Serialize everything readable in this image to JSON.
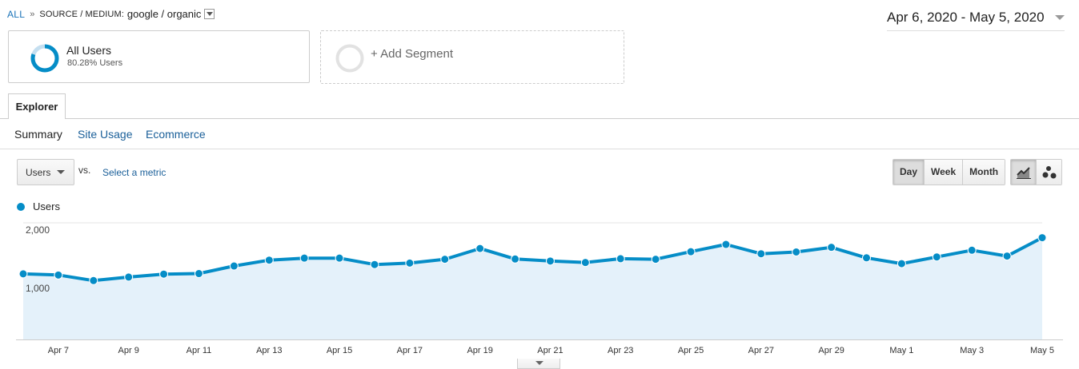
{
  "breadcrumb": {
    "all_label": "ALL",
    "separator": "»",
    "dimension_label": "SOURCE / MEDIUM:",
    "dimension_value": "google / organic"
  },
  "date_range": "Apr 6, 2020 - May 5, 2020",
  "segments": {
    "all_users": {
      "title": "All Users",
      "subtitle": "80.28% Users",
      "share": 0.8028
    },
    "add_segment_label": "+ Add Segment"
  },
  "tabs": {
    "explorer": "Explorer"
  },
  "subtabs": [
    "Summary",
    "Site Usage",
    "Ecommerce"
  ],
  "metric": {
    "selected": "Users",
    "vs_label": "vs.",
    "select_metric_label": "Select a metric"
  },
  "period_buttons": [
    "Day",
    "Week",
    "Month"
  ],
  "active_period": "Day",
  "view_icons": [
    "line-chart-icon",
    "motion-chart-icon"
  ],
  "colors": {
    "series": "#058dc7",
    "area": "#e4f1fa",
    "link": "#1a5f99"
  },
  "chart_data": {
    "type": "area",
    "legend": [
      "Users"
    ],
    "y_ticks": [
      "2,000",
      "1,000"
    ],
    "ylim": [
      0,
      2000
    ],
    "x_labels": [
      "Apr 7",
      "Apr 9",
      "Apr 11",
      "Apr 13",
      "Apr 15",
      "Apr 17",
      "Apr 19",
      "Apr 21",
      "Apr 23",
      "Apr 25",
      "Apr 27",
      "Apr 29",
      "May 1",
      "May 3",
      "May 5"
    ],
    "x": [
      "Apr 6",
      "Apr 7",
      "Apr 8",
      "Apr 9",
      "Apr 10",
      "Apr 11",
      "Apr 12",
      "Apr 13",
      "Apr 14",
      "Apr 15",
      "Apr 16",
      "Apr 17",
      "Apr 18",
      "Apr 19",
      "Apr 20",
      "Apr 21",
      "Apr 22",
      "Apr 23",
      "Apr 24",
      "Apr 25",
      "Apr 26",
      "Apr 27",
      "Apr 28",
      "Apr 29",
      "Apr 30",
      "May 1",
      "May 2",
      "May 3",
      "May 4",
      "May 5"
    ],
    "series": [
      {
        "name": "Users",
        "values": [
          1125,
          1105,
          1010,
          1070,
          1120,
          1130,
          1260,
          1360,
          1395,
          1395,
          1285,
          1310,
          1375,
          1560,
          1380,
          1345,
          1320,
          1385,
          1375,
          1505,
          1630,
          1470,
          1500,
          1580,
          1400,
          1300,
          1415,
          1530,
          1430,
          1745
        ]
      }
    ]
  }
}
